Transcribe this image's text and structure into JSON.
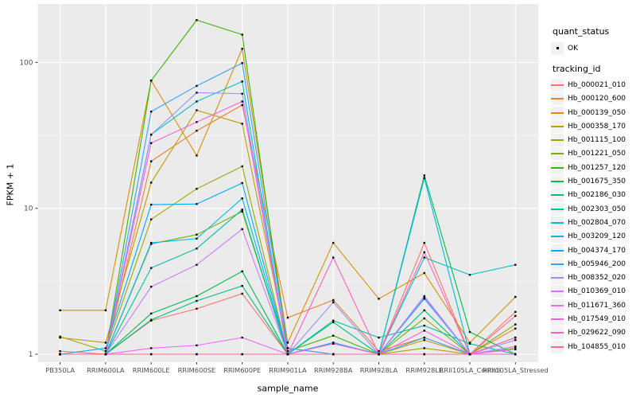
{
  "colors": {
    "panel_bg": "#EBEBEB",
    "grid_major": "#FFFFFF",
    "grid_minor": "#FFFFFF",
    "axis_text": "#4D4D4D",
    "tick_mark": "#333333",
    "legend_key_bg": "#F2F2F2",
    "point": "#000000"
  },
  "legend": {
    "quant": {
      "title": "quant_status",
      "ok_label": "OK"
    },
    "tracking": {
      "title": "tracking_id"
    }
  },
  "chart_data": {
    "type": "line",
    "title": "",
    "xlabel": "sample_name",
    "ylabel": "FPKM + 1",
    "y_scale": "log10",
    "y_ticks": [
      1,
      10,
      100
    ],
    "y_minor_gridlines": [
      3.1623,
      31.623
    ],
    "ylim": [
      0.88,
      250
    ],
    "legend_position": "right",
    "grid": true,
    "marker": {
      "shape": "point",
      "color": "#000000",
      "meaning": "quant_status OK"
    },
    "categories": [
      "PB350LA",
      "RRIM600LA",
      "RRIM600LE",
      "RRIM600SE",
      "RRIM600PE",
      "RRIM901LA",
      "RRIM928BA",
      "RRIM928LA",
      "RRIM928LE",
      "RRII105LA_Control",
      "RRII105LA_Stressed"
    ],
    "series": [
      {
        "name": "Hb_000021_010",
        "color": "#F8766D",
        "values": [
          1.0,
          1.0,
          1.7,
          2.05,
          2.6,
          1.0,
          1.2,
          1.0,
          5.8,
          1.0,
          1.95
        ]
      },
      {
        "name": "Hb_000120_600",
        "color": "#EA8331",
        "values": [
          1.05,
          1.0,
          21,
          34,
          51,
          1.78,
          2.35,
          1.05,
          1.3,
          1.0,
          1.5
        ]
      },
      {
        "name": "Hb_000139_050",
        "color": "#D89000",
        "values": [
          2.0,
          2.0,
          75,
          23,
          124,
          1.2,
          5.8,
          2.4,
          3.6,
          1.2,
          2.47
        ]
      },
      {
        "name": "Hb_000358_170",
        "color": "#C09B00",
        "values": [
          1.3,
          1.2,
          15,
          47,
          38,
          1.1,
          1.0,
          1.0,
          1.25,
          1.0,
          1.3
        ]
      },
      {
        "name": "Hb_001115_100",
        "color": "#A3A500",
        "values": [
          1.32,
          1.05,
          8.4,
          13.6,
          19.4,
          1.0,
          1.0,
          1.0,
          1.1,
          1.0,
          1.1
        ]
      },
      {
        "name": "Hb_001221_050",
        "color": "#7CAE00",
        "values": [
          1.0,
          1.0,
          5.7,
          6.6,
          9.5,
          1.0,
          1.0,
          1.0,
          1.76,
          1.0,
          1.6
        ]
      },
      {
        "name": "Hb_001257_120",
        "color": "#39B600",
        "values": [
          1.0,
          1.0,
          75,
          195,
          155,
          1.05,
          1.34,
          1.0,
          1.0,
          1.0,
          1.0
        ]
      },
      {
        "name": "Hb_001675_350",
        "color": "#00BB4E",
        "values": [
          1.0,
          1.0,
          1.9,
          2.5,
          3.7,
          1.0,
          1.0,
          1.0,
          16.8,
          1.42,
          1.0
        ]
      },
      {
        "name": "Hb_002186_030",
        "color": "#00BF7D",
        "values": [
          1.0,
          1.0,
          1.72,
          2.32,
          2.94,
          1.0,
          1.66,
          1.0,
          2.0,
          1.0,
          1.0
        ]
      },
      {
        "name": "Hb_002303_050",
        "color": "#00C1A3",
        "values": [
          1.0,
          1.0,
          3.9,
          5.3,
          9.8,
          1.0,
          1.7,
          1.3,
          1.57,
          1.18,
          1.0
        ]
      },
      {
        "name": "Hb_002804_070",
        "color": "#00BFC4",
        "values": [
          1.0,
          1.0,
          32,
          54,
          74,
          1.0,
          1.0,
          1.0,
          4.6,
          3.5,
          4.1
        ]
      },
      {
        "name": "Hb_003209_120",
        "color": "#00B8E7",
        "values": [
          1.0,
          1.0,
          5.8,
          6.2,
          11.7,
          1.0,
          1.0,
          1.0,
          16.1,
          1.0,
          1.0
        ]
      },
      {
        "name": "Hb_004374_170",
        "color": "#00ACFC",
        "values": [
          1.0,
          1.1,
          10.6,
          10.7,
          14.9,
          1.0,
          1.2,
          1.0,
          2.4,
          1.0,
          1.0
        ]
      },
      {
        "name": "Hb_005946_200",
        "color": "#35A2FF",
        "values": [
          1.0,
          1.0,
          46,
          69,
          99,
          1.1,
          1.0,
          1.0,
          1.3,
          1.0,
          1.0
        ]
      },
      {
        "name": "Hb_008352_020",
        "color": "#9590FF",
        "values": [
          1.0,
          1.0,
          32,
          62,
          61,
          1.0,
          2.27,
          1.0,
          2.5,
          1.0,
          1.25
        ]
      },
      {
        "name": "Hb_010369_010",
        "color": "#C77CFF",
        "values": [
          1.0,
          1.0,
          2.9,
          4.1,
          7.2,
          1.0,
          1.0,
          1.0,
          2.45,
          1.0,
          1.13
        ]
      },
      {
        "name": "Hb_011671_360",
        "color": "#E76BF3",
        "values": [
          1.0,
          1.0,
          1.1,
          1.15,
          1.3,
          1.0,
          1.0,
          1.0,
          1.0,
          1.0,
          1.08
        ]
      },
      {
        "name": "Hb_017549_010",
        "color": "#FA62DB",
        "values": [
          1.0,
          1.0,
          28,
          39,
          54,
          1.0,
          1.18,
          1.0,
          1.45,
          1.0,
          1.0
        ]
      },
      {
        "name": "Hb_029622_090",
        "color": "#FF62BC",
        "values": [
          1.0,
          1.0,
          1.0,
          1.0,
          1.0,
          1.0,
          4.6,
          1.0,
          5.0,
          1.0,
          1.3
        ]
      },
      {
        "name": "Hb_104855_010",
        "color": "#FF6A98",
        "values": [
          1.0,
          1.0,
          1.0,
          1.0,
          1.0,
          1.0,
          1.0,
          1.0,
          1.0,
          1.0,
          1.83
        ]
      }
    ]
  }
}
